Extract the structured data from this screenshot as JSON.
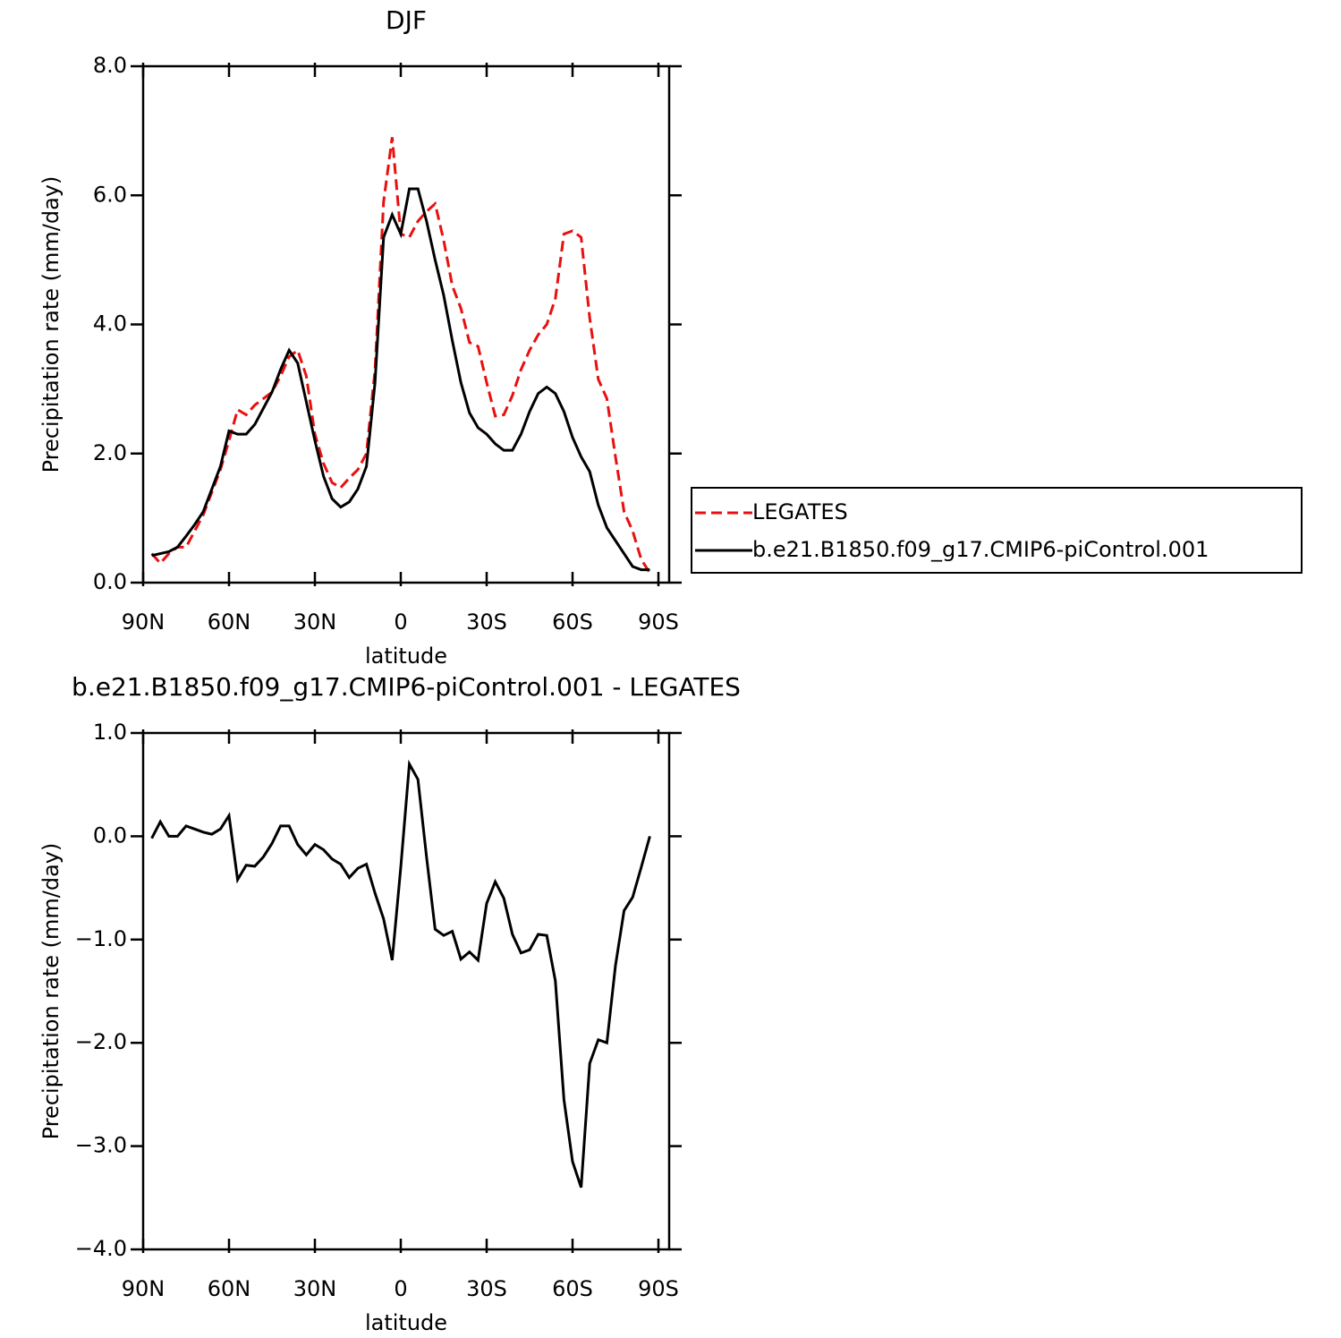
{
  "chart_data": [
    {
      "type": "line",
      "title": "DJF",
      "xlabel": "latitude",
      "ylabel": "Precipitation rate (mm/day)",
      "x": [
        87,
        84,
        81,
        78,
        75,
        72,
        69,
        66,
        63,
        60,
        57,
        54,
        51,
        48,
        45,
        42,
        39,
        36,
        33,
        30,
        27,
        24,
        21,
        18,
        15,
        12,
        9,
        6,
        3,
        0,
        -3,
        -6,
        -9,
        -12,
        -15,
        -18,
        -21,
        -24,
        -27,
        -30,
        -33,
        -36,
        -39,
        -42,
        -45,
        -48,
        -51,
        -54,
        -57,
        -60,
        -63,
        -66,
        -69,
        -72,
        -75,
        -78,
        -81,
        -84,
        -87
      ],
      "series": [
        {
          "name": "LEGATES",
          "color": "#e8100f",
          "line_style": "dashed",
          "values": [
            0.45,
            0.3,
            0.45,
            0.55,
            0.55,
            0.8,
            1.05,
            1.4,
            1.75,
            2.2,
            2.68,
            2.6,
            2.75,
            2.85,
            2.95,
            3.2,
            3.5,
            3.6,
            3.2,
            2.3,
            1.85,
            1.55,
            1.47,
            1.62,
            1.75,
            2.0,
            3.3,
            5.9,
            6.9,
            5.4,
            5.35,
            5.6,
            5.75,
            5.87,
            5.3,
            4.6,
            4.25,
            3.72,
            3.66,
            3.1,
            2.58,
            2.6,
            2.9,
            3.3,
            3.6,
            3.84,
            4.0,
            4.4,
            5.4,
            5.45,
            5.35,
            4.1,
            3.15,
            2.85,
            1.95,
            1.1,
            0.8,
            0.36,
            0.15
          ]
        },
        {
          "name": "b.e21.B1850.f09_g17.CMIP6-piControl.001",
          "color": "#000000",
          "line_style": "solid",
          "values": [
            0.42,
            0.45,
            0.48,
            0.55,
            0.72,
            0.9,
            1.1,
            1.45,
            1.8,
            2.35,
            2.3,
            2.3,
            2.45,
            2.7,
            2.95,
            3.3,
            3.6,
            3.4,
            2.8,
            2.2,
            1.65,
            1.3,
            1.17,
            1.25,
            1.45,
            1.8,
            3.1,
            5.35,
            5.7,
            5.4,
            6.1,
            6.1,
            5.6,
            5.0,
            4.45,
            3.75,
            3.1,
            2.63,
            2.4,
            2.3,
            2.15,
            2.05,
            2.05,
            2.3,
            2.65,
            2.93,
            3.03,
            2.93,
            2.65,
            2.25,
            1.95,
            1.72,
            1.2,
            0.85,
            0.65,
            0.45,
            0.25,
            0.2,
            0.2
          ]
        }
      ],
      "xlim": [
        90,
        -93.75
      ],
      "xticks": [
        {
          "value": 90,
          "label": "90N"
        },
        {
          "value": 60,
          "label": "60N"
        },
        {
          "value": 30,
          "label": "30N"
        },
        0,
        {
          "value": -30,
          "label": "30S"
        },
        {
          "value": -60,
          "label": "60S"
        },
        {
          "value": -90,
          "label": "90S"
        }
      ],
      "ylim": [
        0,
        8
      ],
      "yticks": [
        {
          "value": 0,
          "label": "0.0"
        },
        {
          "value": 2,
          "label": "2.0"
        },
        {
          "value": 4,
          "label": "4.0"
        },
        {
          "value": 6,
          "label": "6.0"
        },
        {
          "value": 8,
          "label": "8.0"
        }
      ],
      "legend": "right"
    },
    {
      "type": "line",
      "title": "b.e21.B1850.f09_g17.CMIP6-piControl.001  -  LEGATES",
      "xlabel": "latitude",
      "ylabel": "Precipitation rate (mm/day)",
      "x": [
        87,
        84,
        81,
        78,
        75,
        72,
        69,
        66,
        63,
        60,
        57,
        54,
        51,
        48,
        45,
        42,
        39,
        36,
        33,
        30,
        27,
        24,
        21,
        18,
        15,
        12,
        9,
        6,
        3,
        0,
        -3,
        -6,
        -9,
        -12,
        -15,
        -18,
        -21,
        -24,
        -27,
        -30,
        -33,
        -36,
        -39,
        -42,
        -45,
        -48,
        -51,
        -54,
        -57,
        -60,
        -63,
        -66,
        -69,
        -72,
        -75,
        -78,
        -81,
        -84,
        -87
      ],
      "series": [
        {
          "color": "#000000",
          "line_style": "solid",
          "values": [
            -0.02,
            0.14,
            0.0,
            0.0,
            0.1,
            0.07,
            0.04,
            0.02,
            0.07,
            0.2,
            -0.42,
            -0.28,
            -0.29,
            -0.2,
            -0.07,
            0.1,
            0.1,
            -0.08,
            -0.18,
            -0.08,
            -0.13,
            -0.22,
            -0.27,
            -0.4,
            -0.31,
            -0.27,
            -0.55,
            -0.8,
            -1.2,
            -0.3,
            0.7,
            0.55,
            -0.2,
            -0.9,
            -0.96,
            -0.92,
            -1.19,
            -1.12,
            -1.2,
            -0.65,
            -0.44,
            -0.6,
            -0.95,
            -1.13,
            -1.1,
            -0.95,
            -0.96,
            -1.4,
            -2.55,
            -3.15,
            -3.4,
            -2.2,
            -1.97,
            -2.0,
            -1.25,
            -0.72,
            -0.59,
            -0.3,
            0.0
          ]
        }
      ],
      "xlim": [
        90,
        -93.75
      ],
      "xticks": [
        {
          "value": 90,
          "label": "90N"
        },
        {
          "value": 60,
          "label": "60N"
        },
        {
          "value": 30,
          "label": "30N"
        },
        0,
        {
          "value": -30,
          "label": "30S"
        },
        {
          "value": -60,
          "label": "60S"
        },
        {
          "value": -90,
          "label": "90S"
        }
      ],
      "ylim": [
        -4,
        1
      ],
      "yticks": [
        {
          "value": -4,
          "label": "−4.0"
        },
        {
          "value": -3,
          "label": "−3.0"
        },
        {
          "value": -2,
          "label": "−2.0"
        },
        {
          "value": -1,
          "label": "−1.0"
        },
        {
          "value": 0,
          "label": "0.0"
        },
        {
          "value": 1,
          "label": "1.0"
        }
      ]
    }
  ]
}
